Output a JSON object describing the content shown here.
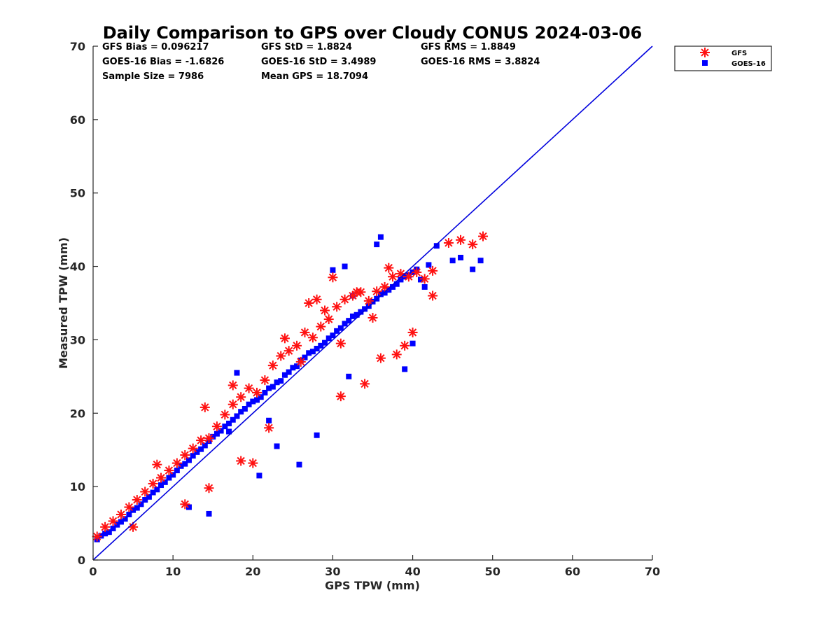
{
  "chart_data": {
    "type": "scatter",
    "title": "Daily Comparison to GPS over Cloudy CONUS 2024-03-06",
    "xlabel": "GPS TPW (mm)",
    "ylabel": "Measured TPW (mm)",
    "xlim": [
      0,
      70
    ],
    "ylim": [
      0,
      70
    ],
    "xticks": [
      "0",
      "10",
      "20",
      "30",
      "40",
      "50",
      "60",
      "70"
    ],
    "yticks": [
      "0",
      "10",
      "20",
      "30",
      "40",
      "50",
      "60",
      "70"
    ],
    "grid": false,
    "legend_position": "outside top-right",
    "stats": [
      [
        "GFS Bias = 0.096217",
        "GFS StD = 1.8824",
        "GFS RMS = 1.8849"
      ],
      [
        "GOES-16 Bias = -1.6826",
        "GOES-16 StD = 3.4989",
        "GOES-16 RMS = 3.8824"
      ],
      [
        "Sample Size = 7986",
        "Mean GPS = 18.7094"
      ]
    ],
    "reference_line": {
      "x": [
        0,
        70
      ],
      "y": [
        0,
        70
      ],
      "color": "#0000dd"
    },
    "series": [
      {
        "name": "GFS",
        "marker": "asterisk",
        "color": "#ff1111",
        "x": [
          0.5,
          1.5,
          2.5,
          3.5,
          4.5,
          5.5,
          6.5,
          7.5,
          8.5,
          9.5,
          10.5,
          11.5,
          12.5,
          13.5,
          14.5,
          15.5,
          16.5,
          17.5,
          18.5,
          19.5,
          20.5,
          21.5,
          22.5,
          23.5,
          24.5,
          25.5,
          26.5,
          27.5,
          28.5,
          29.5,
          30.5,
          31.5,
          32.5,
          33.5,
          34.5,
          35.5,
          36.5,
          37.5,
          38.5,
          39.5,
          40.5,
          41.5,
          42.5,
          44.5,
          46,
          47.5,
          48.8,
          14,
          17.5,
          20,
          24,
          28,
          30,
          33,
          35,
          38,
          40,
          42.5,
          36,
          31,
          26,
          22,
          18.5,
          14.5,
          11.5,
          8,
          5,
          27,
          29,
          39,
          37,
          34,
          31
        ],
        "y": [
          3.2,
          4.5,
          5.3,
          6.2,
          7.2,
          8.2,
          9.3,
          10.4,
          11.2,
          12.2,
          13.2,
          14.3,
          15.2,
          16.3,
          16.6,
          18.2,
          19.8,
          21.2,
          22.2,
          23.4,
          22.8,
          24.5,
          26.5,
          27.8,
          28.5,
          29.2,
          31,
          30.3,
          31.8,
          32.8,
          34.5,
          35.5,
          36,
          36.5,
          35.3,
          36.6,
          37.2,
          38.6,
          39,
          38.6,
          39.2,
          38.3,
          39.4,
          43.2,
          43.6,
          43,
          44.1,
          20.8,
          23.8,
          13.2,
          30.2,
          35.5,
          38.5,
          36.5,
          33,
          28,
          31,
          36,
          27.5,
          29.5,
          27,
          18,
          13.5,
          9.8,
          7.6,
          13,
          4.5,
          35,
          34,
          29.2,
          39.8,
          24,
          22.3
        ]
      },
      {
        "name": "GOES-16",
        "marker": "square",
        "color": "#0000ff",
        "x": [
          0.5,
          1,
          1.5,
          2,
          2.5,
          3,
          3.5,
          4,
          4.5,
          5,
          5.5,
          6,
          6.5,
          7,
          7.5,
          8,
          8.5,
          9,
          9.5,
          10,
          10.5,
          11,
          11.5,
          12,
          12.5,
          13,
          13.5,
          14,
          14.5,
          15,
          15.5,
          16,
          16.5,
          17,
          17.5,
          18,
          18.5,
          19,
          19.5,
          20,
          20.5,
          21,
          21.5,
          22,
          22.5,
          23,
          23.5,
          24,
          24.5,
          25,
          25.5,
          26,
          26.5,
          27,
          27.5,
          28,
          28.5,
          29,
          29.5,
          30,
          30.5,
          31,
          31.5,
          32,
          32.5,
          33,
          33.5,
          34,
          34.5,
          35,
          35.5,
          36,
          36.5,
          37,
          37.5,
          38,
          38.5,
          39,
          39.5,
          40,
          40.5,
          41,
          41.5,
          42,
          43,
          45,
          46,
          47.5,
          48.5,
          36,
          35.5,
          30,
          31.5,
          17,
          18,
          25.8,
          14.5,
          12,
          20.8,
          23,
          28,
          22,
          39,
          40,
          32.5,
          32
        ],
        "y": [
          2.8,
          3.3,
          3.6,
          3.8,
          4.3,
          4.8,
          5.2,
          5.6,
          6.2,
          6.8,
          7.1,
          7.6,
          8.2,
          8.6,
          9.2,
          9.6,
          10.2,
          10.6,
          11.2,
          11.6,
          12.2,
          12.8,
          13.1,
          13.6,
          14.2,
          14.7,
          15.1,
          15.6,
          16.2,
          16.8,
          17.2,
          17.6,
          18.2,
          18.6,
          19.1,
          19.6,
          20.2,
          20.6,
          21.2,
          21.6,
          21.8,
          22.2,
          22.8,
          23.4,
          23.6,
          24.2,
          24.4,
          25.2,
          25.6,
          26.2,
          26.4,
          27.2,
          27.6,
          28.2,
          28.4,
          28.8,
          29.2,
          29.6,
          30.2,
          30.6,
          31.2,
          31.6,
          32.2,
          32.6,
          33.2,
          33.4,
          33.8,
          34.2,
          34.6,
          35.2,
          35.6,
          36.2,
          36.4,
          36.8,
          37.2,
          37.6,
          38.2,
          38.6,
          38.8,
          39.2,
          39.6,
          38.2,
          37.2,
          40.2,
          42.8,
          40.8,
          41.2,
          39.6,
          40.8,
          44,
          43,
          39.5,
          40,
          17.5,
          25.5,
          13,
          6.3,
          7.2,
          11.5,
          15.5,
          17,
          19,
          26,
          29.5,
          36,
          25
        ]
      }
    ]
  }
}
